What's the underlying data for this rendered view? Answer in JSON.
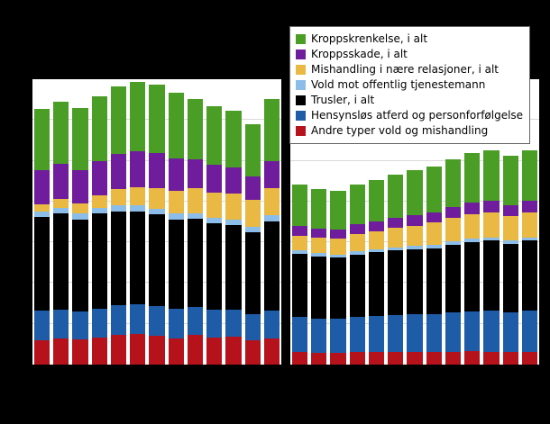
{
  "page": {
    "background_color": "#000000",
    "plot_background_color": "#ffffff",
    "gridline_color": "#d9d9d9"
  },
  "chart_data": {
    "type": "bar",
    "stacked": true,
    "title": "",
    "xlabel": "",
    "ylabel": "",
    "ylim": [
      0,
      35000
    ],
    "gridline_step": 5000,
    "grid": true,
    "legend_position": "top-right",
    "groups": [
      "group1",
      "group2"
    ],
    "bars_per_group": 13,
    "series": [
      {
        "name": "Andre typer vold og mishandling",
        "color": "#b5121b",
        "group1": [
          3000,
          3200,
          3100,
          3300,
          3600,
          3800,
          3500,
          3200,
          3600,
          3300,
          3400,
          3000,
          3200
        ],
        "group2": [
          1500,
          1450,
          1400,
          1500,
          1550,
          1600,
          1550,
          1500,
          1600,
          1650,
          1600,
          1550,
          1600
        ]
      },
      {
        "name": "Hensynsløs atferd og personforfølgelse",
        "color": "#1f5ca8",
        "group1": [
          3600,
          3500,
          3400,
          3600,
          3700,
          3600,
          3700,
          3600,
          3500,
          3400,
          3300,
          3200,
          3400
        ],
        "group2": [
          4300,
          4200,
          4200,
          4300,
          4400,
          4500,
          4600,
          4700,
          4800,
          4900,
          5000,
          4900,
          5000
        ]
      },
      {
        "name": "Trusler, i alt",
        "color": "#000000",
        "group1": [
          11500,
          11800,
          11300,
          11600,
          11500,
          11400,
          11200,
          11000,
          10800,
          10600,
          10400,
          10000,
          11000
        ],
        "group2": [
          7800,
          7600,
          7500,
          7700,
          7800,
          7900,
          8000,
          8100,
          8300,
          8500,
          8600,
          8400,
          8600
        ]
      },
      {
        "name": "Vold mot offentlig tjenestemann",
        "color": "#8bbde8",
        "group1": [
          700,
          700,
          700,
          700,
          700,
          700,
          700,
          700,
          700,
          700,
          700,
          700,
          700
        ],
        "group2": [
          400,
          400,
          400,
          400,
          400,
          400,
          400,
          400,
          400,
          400,
          400,
          400,
          400
        ]
      },
      {
        "name": "Mishandling i nære relasjoner, i alt",
        "color": "#e9b944",
        "group1": [
          900,
          1100,
          1300,
          1600,
          2000,
          2300,
          2600,
          2800,
          3000,
          3100,
          3200,
          3300,
          3400
        ],
        "group2": [
          1800,
          1900,
          2000,
          2100,
          2200,
          2400,
          2500,
          2700,
          2900,
          3000,
          3100,
          3000,
          3100
        ]
      },
      {
        "name": "Kroppsskade, i alt",
        "color": "#6f1d9c",
        "group1": [
          4200,
          4300,
          4100,
          4200,
          4300,
          4400,
          4200,
          4000,
          3600,
          3400,
          3200,
          2900,
          3300
        ],
        "group2": [
          1200,
          1100,
          1100,
          1200,
          1200,
          1200,
          1300,
          1300,
          1300,
          1400,
          1400,
          1300,
          1400
        ]
      },
      {
        "name": "Kroppskrenkelse, i alt",
        "color": "#4a9e26",
        "group1": [
          7500,
          7700,
          7600,
          7900,
          8300,
          8500,
          8400,
          8100,
          7400,
          7200,
          6900,
          6400,
          7600
        ],
        "group2": [
          5100,
          4900,
          4700,
          4900,
          5100,
          5300,
          5500,
          5600,
          5900,
          6100,
          6200,
          6100,
          6200
        ]
      }
    ]
  }
}
